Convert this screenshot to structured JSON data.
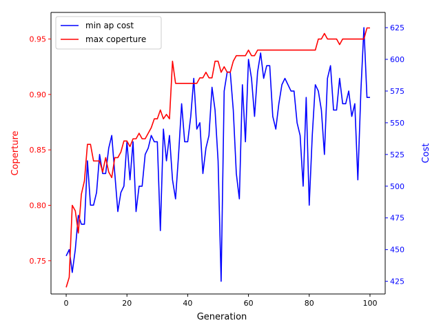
{
  "chart_data": {
    "type": "line",
    "title": "",
    "xlabel": "Generation",
    "ylabel_left": "Coperture",
    "ylabel_right": "Cost",
    "xlim": [
      -5,
      105
    ],
    "ylim_left": [
      0.72,
      0.974
    ],
    "ylim_right": [
      415,
      637
    ],
    "xticks": [
      0,
      20,
      40,
      60,
      80,
      100
    ],
    "yticks_left": [
      "0.75",
      "0.80",
      "0.85",
      "0.90",
      "0.95"
    ],
    "yticks_right": [
      "425",
      "450",
      "475",
      "500",
      "525",
      "550",
      "575",
      "600",
      "625"
    ],
    "grid": false,
    "legend_position": "top-left",
    "colors": {
      "left_axis": "#ff0000",
      "right_axis": "#0000ff",
      "axis_line": "#000000"
    },
    "series": [
      {
        "name": "min ap cost",
        "axis": "right",
        "color": "#0000ff",
        "x": [
          0,
          1,
          2,
          3,
          4,
          5,
          6,
          7,
          8,
          9,
          10,
          11,
          12,
          13,
          14,
          15,
          16,
          17,
          18,
          19,
          20,
          21,
          22,
          23,
          24,
          25,
          26,
          27,
          28,
          29,
          30,
          31,
          32,
          33,
          34,
          35,
          36,
          37,
          38,
          39,
          40,
          41,
          42,
          43,
          44,
          45,
          46,
          47,
          48,
          49,
          50,
          51,
          52,
          53,
          54,
          55,
          56,
          57,
          58,
          59,
          60,
          61,
          62,
          63,
          64,
          65,
          66,
          67,
          68,
          69,
          70,
          71,
          72,
          73,
          74,
          75,
          76,
          77,
          78,
          79,
          80,
          81,
          82,
          83,
          84,
          85,
          86,
          87,
          88,
          89,
          90,
          91,
          92,
          93,
          94,
          95,
          96,
          97,
          98,
          99,
          100
        ],
        "values": [
          445,
          450,
          432,
          450,
          477,
          470,
          470,
          520,
          485,
          485,
          495,
          525,
          510,
          510,
          530,
          540,
          510,
          480,
          495,
          500,
          535,
          505,
          535,
          480,
          500,
          500,
          525,
          530,
          540,
          535,
          535,
          465,
          545,
          520,
          540,
          505,
          490,
          525,
          565,
          535,
          535,
          555,
          585,
          545,
          550,
          510,
          530,
          540,
          578,
          560,
          520,
          425,
          575,
          590,
          590,
          560,
          510,
          490,
          580,
          535,
          600,
          585,
          555,
          590,
          605,
          585,
          595,
          595,
          555,
          545,
          565,
          580,
          585,
          580,
          575,
          575,
          550,
          540,
          500,
          570,
          485,
          540,
          580,
          575,
          560,
          525,
          585,
          595,
          560,
          560,
          585,
          565,
          565,
          575,
          555,
          565,
          505,
          575,
          625,
          570,
          570
        ]
      },
      {
        "name": "max coperture",
        "axis": "left",
        "color": "#ff0000",
        "x": [
          0,
          1,
          2,
          3,
          4,
          5,
          6,
          7,
          8,
          9,
          10,
          11,
          12,
          13,
          14,
          15,
          16,
          17,
          18,
          19,
          20,
          21,
          22,
          23,
          24,
          25,
          26,
          27,
          28,
          29,
          30,
          31,
          32,
          33,
          34,
          35,
          36,
          37,
          38,
          39,
          40,
          41,
          42,
          43,
          44,
          45,
          46,
          47,
          48,
          49,
          50,
          51,
          52,
          53,
          54,
          55,
          56,
          57,
          58,
          59,
          60,
          61,
          62,
          63,
          64,
          65,
          66,
          67,
          68,
          69,
          70,
          71,
          72,
          73,
          74,
          75,
          76,
          77,
          78,
          79,
          80,
          81,
          82,
          83,
          84,
          85,
          86,
          87,
          88,
          89,
          90,
          91,
          92,
          93,
          94,
          95,
          96,
          97,
          98,
          99,
          100
        ],
        "values": [
          0.726,
          0.735,
          0.8,
          0.795,
          0.775,
          0.81,
          0.822,
          0.855,
          0.855,
          0.84,
          0.84,
          0.84,
          0.83,
          0.843,
          0.83,
          0.825,
          0.843,
          0.843,
          0.848,
          0.858,
          0.858,
          0.853,
          0.86,
          0.86,
          0.865,
          0.86,
          0.86,
          0.865,
          0.87,
          0.878,
          0.878,
          0.886,
          0.878,
          0.882,
          0.878,
          0.93,
          0.91,
          0.91,
          0.91,
          0.91,
          0.91,
          0.91,
          0.91,
          0.91,
          0.915,
          0.915,
          0.92,
          0.915,
          0.915,
          0.93,
          0.93,
          0.92,
          0.925,
          0.92,
          0.92,
          0.93,
          0.935,
          0.935,
          0.935,
          0.935,
          0.94,
          0.935,
          0.935,
          0.94,
          0.94,
          0.94,
          0.94,
          0.94,
          0.94,
          0.94,
          0.94,
          0.94,
          0.94,
          0.94,
          0.94,
          0.94,
          0.94,
          0.94,
          0.94,
          0.94,
          0.94,
          0.94,
          0.94,
          0.95,
          0.95,
          0.955,
          0.95,
          0.95,
          0.95,
          0.95,
          0.945,
          0.95,
          0.95,
          0.95,
          0.95,
          0.95,
          0.95,
          0.95,
          0.95,
          0.96,
          0.96
        ]
      }
    ]
  }
}
